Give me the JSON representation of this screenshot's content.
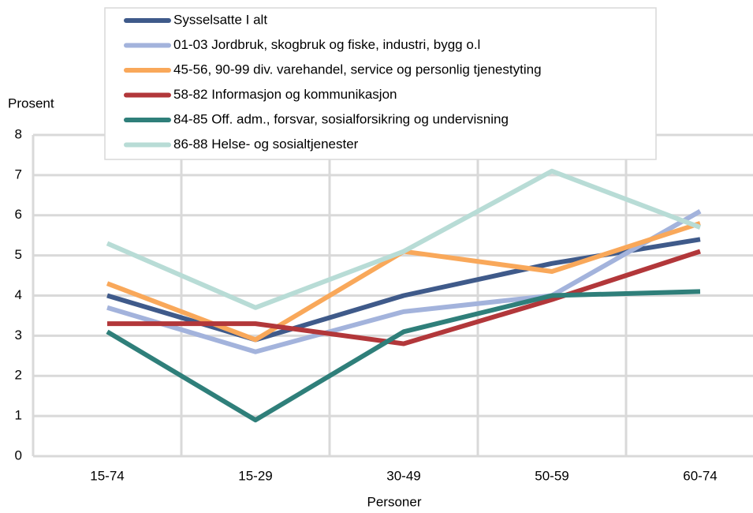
{
  "chart_data": {
    "type": "line",
    "ylabel": "Prosent",
    "xlabel": "Personer",
    "categories": [
      "15-74",
      "15-29",
      "30-49",
      "50-59",
      "60-74"
    ],
    "series": [
      {
        "name": "Sysselsatte I alt",
        "color": "#3f5a8a",
        "values": [
          4.0,
          2.9,
          4.0,
          4.8,
          5.4
        ]
      },
      {
        "name": "01-03 Jordbruk, skogbruk og fiske, industri, bygg o.l",
        "color": "#a3b3dc",
        "values": [
          3.7,
          2.6,
          3.6,
          4.0,
          6.1
        ]
      },
      {
        "name": "45-56, 90-99 div. varehandel, service og personlig tjenestyting",
        "color": "#f9a85a",
        "values": [
          4.3,
          2.9,
          5.1,
          4.6,
          5.8
        ]
      },
      {
        "name": "58-82 Informasjon og kommunikasjon",
        "color": "#b2373a",
        "values": [
          3.3,
          3.3,
          2.8,
          3.9,
          5.1
        ]
      },
      {
        "name": "84-85 Off. adm., forsvar, sosialforsikring og undervisning",
        "color": "#2f7f7a",
        "values": [
          3.1,
          0.9,
          3.1,
          4.0,
          4.1
        ]
      },
      {
        "name": "86-88 Helse- og sosialtjenester",
        "color": "#b8dcd6",
        "values": [
          5.3,
          3.7,
          5.1,
          7.1,
          5.7
        ]
      }
    ],
    "ylim": [
      0,
      8
    ],
    "yticks": [
      0,
      1,
      2,
      3,
      4,
      5,
      6,
      7,
      8
    ],
    "grid": true,
    "legend": "top"
  }
}
